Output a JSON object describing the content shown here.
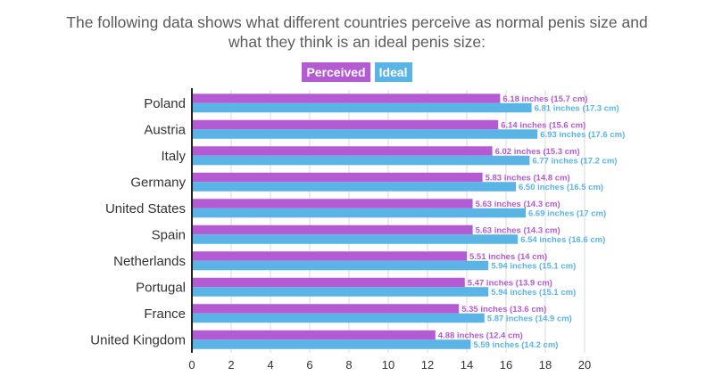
{
  "chart_data": {
    "type": "bar",
    "orientation": "horizontal",
    "title": "The following data shows what different countries perceive as normal penis size and what they think is an ideal penis size:",
    "categories": [
      "Poland",
      "Austria",
      "Italy",
      "Germany",
      "United States",
      "Spain",
      "Netherlands",
      "Portugal",
      "France",
      "United Kingdom"
    ],
    "series": [
      {
        "name": "Perceived",
        "color": "#b45ad2",
        "values": [
          15.7,
          15.6,
          15.3,
          14.8,
          14.3,
          14.3,
          14,
          13.9,
          13.6,
          12.4
        ],
        "labels": [
          "6.18 inches (15.7 cm)",
          "6.14 inches (15.6 cm)",
          "6.02 inches (15.3 cm)",
          "5.83 inches (14.8 cm)",
          "5.63 inches (14.3 cm)",
          "5.63 inches (14.3 cm)",
          "5.51 inches (14 cm)",
          "5.47 inches (13.9 cm)",
          "5.35 inches (13.6 cm)",
          "4.88 inches (12.4 cm)"
        ]
      },
      {
        "name": "Ideal",
        "color": "#5ab4e6",
        "values": [
          17.3,
          17.6,
          17.2,
          16.5,
          17,
          16.6,
          15.1,
          15.1,
          14.9,
          14.2
        ],
        "labels": [
          "6.81 inches (17.3 cm)",
          "6.93 inches (17.6 cm)",
          "6.77 inches (17.2 cm)",
          "6.50 inches (16.5 cm)",
          "6.69 inches (17 cm)",
          "6.54 inches (16.6 cm)",
          "5.94 inches (15.1 cm)",
          "5.94 inches (15.1 cm)",
          "5.87 inches (14.9 cm)",
          "5.59 inches (14.2 cm)"
        ]
      }
    ],
    "xlim": [
      0,
      20
    ],
    "xticks": [
      "0",
      "2",
      "4",
      "6",
      "8",
      "10",
      "12",
      "14",
      "16",
      "18",
      "20"
    ],
    "grid": true,
    "legend": "top-center"
  }
}
